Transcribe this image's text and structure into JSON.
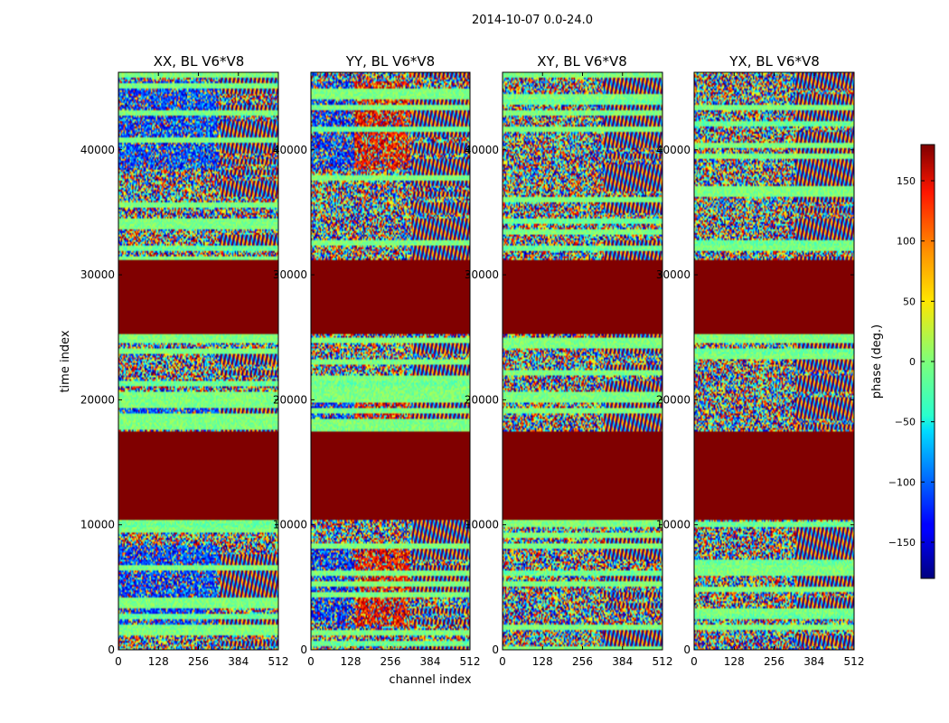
{
  "figure": {
    "suptitle": "2014-10-07 0.0-24.0"
  },
  "chart_data": [
    {
      "type": "heatmap",
      "title": "XX, BL V6*V8",
      "xlabel": "",
      "ylabel": "time index",
      "xticks": [
        "0",
        "128",
        "256",
        "384",
        "512"
      ],
      "yticks": [
        "0",
        "10000",
        "20000",
        "30000",
        "40000"
      ],
      "xlim": [
        0,
        512
      ],
      "ylim": [
        0,
        46200
      ],
      "flagged_time_ranges": [
        [
          10400,
          17500
        ],
        [
          25400,
          31200
        ]
      ],
      "flag_value": 180,
      "pattern": "xx"
    },
    {
      "type": "heatmap",
      "title": "YY, BL V6*V8",
      "xlabel": "channel index",
      "ylabel": "",
      "xticks": [
        "0",
        "128",
        "256",
        "384",
        "512"
      ],
      "yticks": [
        "0",
        "10000",
        "20000",
        "30000",
        "40000"
      ],
      "xlim": [
        0,
        512
      ],
      "ylim": [
        0,
        46200
      ],
      "flagged_time_ranges": [
        [
          10400,
          17500
        ],
        [
          25400,
          31200
        ]
      ],
      "flag_value": 180,
      "pattern": "yy"
    },
    {
      "type": "heatmap",
      "title": "XY, BL V6*V8",
      "xlabel": "",
      "ylabel": "",
      "xticks": [
        "0",
        "128",
        "256",
        "384",
        "512"
      ],
      "yticks": [
        "0",
        "10000",
        "20000",
        "30000",
        "40000"
      ],
      "xlim": [
        0,
        512
      ],
      "ylim": [
        0,
        46200
      ],
      "flagged_time_ranges": [
        [
          10400,
          17500
        ],
        [
          25400,
          31200
        ]
      ],
      "flag_value": 180,
      "pattern": "cross"
    },
    {
      "type": "heatmap",
      "title": "YX, BL V6*V8",
      "xlabel": "",
      "ylabel": "",
      "xticks": [
        "0",
        "128",
        "256",
        "384",
        "512"
      ],
      "yticks": [
        "0",
        "10000",
        "20000",
        "30000",
        "40000"
      ],
      "xlim": [
        0,
        512
      ],
      "ylim": [
        0,
        46200
      ],
      "flagged_time_ranges": [
        [
          10400,
          17500
        ],
        [
          25400,
          31200
        ]
      ],
      "flag_value": 180,
      "pattern": "cross"
    }
  ],
  "colorbar": {
    "label": "phase (deg.)",
    "range": [
      -180,
      180
    ],
    "ticks": [
      150,
      100,
      50,
      0,
      -50,
      -100,
      -150
    ],
    "tick_labels": [
      "150",
      "100",
      "50",
      "0",
      "−50",
      "−100",
      "−150"
    ],
    "colormap": "jet"
  }
}
